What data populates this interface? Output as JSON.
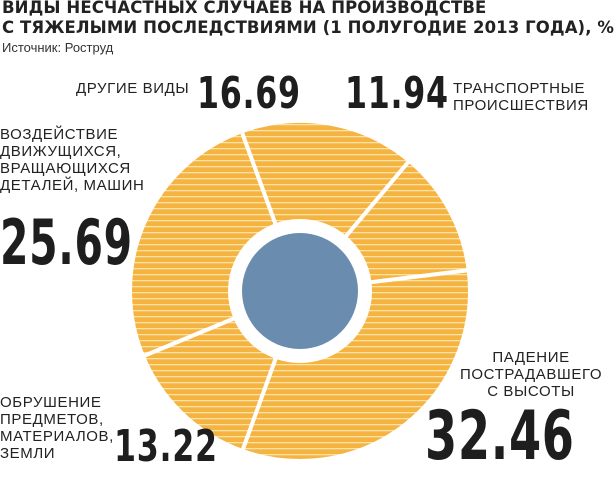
{
  "title_lines": [
    "ВИДЫ НЕСЧАСТНЫХ СЛУЧАЕВ НА ПРОИЗВОДСТВЕ",
    "С ТЯЖЕЛЫМИ ПОСЛЕДСТВИЯМИ (1 ПОЛУГОДИЕ 2013 ГОДА), %"
  ],
  "source": "Источник: Роструд",
  "colors": {
    "slice_fill": "#f5b342",
    "slice_stripe": "#fde2a6",
    "center_circle": "#6a8caf",
    "separator": "#ffffff"
  },
  "chart_data": {
    "type": "pie",
    "variant": "donut",
    "unit": "%",
    "slices": [
      {
        "label_lines": [
          "ТРАНСПОРТНЫЕ",
          "ПРОИСШЕСТВИЯ"
        ],
        "value": 11.94,
        "value_text": "11.94"
      },
      {
        "label_lines": [
          "ПАДЕНИЕ",
          "ПОСТРАДАВШЕГО",
          "С ВЫСОТЫ"
        ],
        "value": 32.46,
        "value_text": "32.46"
      },
      {
        "label_lines": [
          "ОБРУШЕНИЕ",
          "ПРЕДМЕТОВ,",
          "МАТЕРИАЛОВ,",
          "ЗЕМЛИ"
        ],
        "value": 13.22,
        "value_text": "13.22"
      },
      {
        "label_lines": [
          "ВОЗДЕЙСТВИЕ",
          "ДВИЖУЩИХСЯ,",
          "ВРАЩАЮЩИХСЯ",
          "ДЕТАЛЕЙ, МАШИН"
        ],
        "value": 25.69,
        "value_text": "25.69"
      },
      {
        "label_lines": [
          "ДРУГИЕ ВИДЫ"
        ],
        "value": 16.69,
        "value_text": "16.69"
      }
    ]
  }
}
